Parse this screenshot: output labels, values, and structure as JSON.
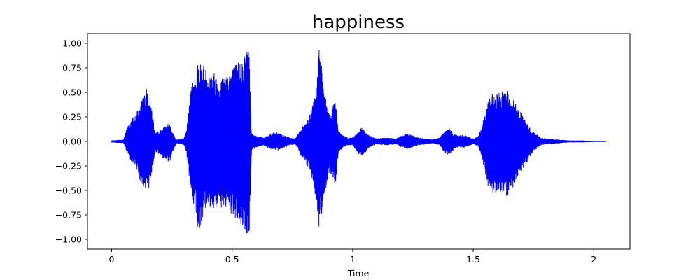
{
  "chart_data": {
    "type": "line",
    "title": "happiness",
    "xlabel": "Time",
    "ylabel": "",
    "xlim": [
      -0.1,
      2.15
    ],
    "ylim": [
      -1.1,
      1.1
    ],
    "x_ticks": [
      0,
      0.5,
      1,
      1.5,
      2
    ],
    "x_tick_labels": [
      "0",
      "0.5",
      "1",
      "1.5",
      "2"
    ],
    "y_ticks": [
      1.0,
      0.75,
      0.5,
      0.25,
      0.0,
      -0.25,
      -0.5,
      -0.75,
      -1.0
    ],
    "y_tick_labels": [
      "1.00",
      "0.75",
      "0.50",
      "0.25",
      "0.00",
      "−0.25",
      "−0.50",
      "−0.75",
      "−1.00"
    ],
    "grid": false,
    "series_color": "#0000ff",
    "duration": 2.05,
    "envelope": {
      "t": [
        0.0,
        0.05,
        0.06,
        0.08,
        0.1,
        0.12,
        0.14,
        0.15,
        0.17,
        0.18,
        0.2,
        0.22,
        0.24,
        0.25,
        0.27,
        0.29,
        0.3,
        0.31,
        0.33,
        0.35,
        0.36,
        0.38,
        0.4,
        0.42,
        0.45,
        0.48,
        0.52,
        0.55,
        0.57,
        0.58,
        0.6,
        0.63,
        0.66,
        0.68,
        0.7,
        0.72,
        0.74,
        0.76,
        0.77,
        0.78,
        0.8,
        0.82,
        0.84,
        0.85,
        0.86,
        0.87,
        0.88,
        0.9,
        0.92,
        0.93,
        0.94,
        0.96,
        0.98,
        1.0,
        1.02,
        1.04,
        1.06,
        1.08,
        1.1,
        1.14,
        1.18,
        1.2,
        1.23,
        1.26,
        1.3,
        1.33,
        1.36,
        1.38,
        1.4,
        1.42,
        1.44,
        1.46,
        1.48,
        1.5,
        1.52,
        1.54,
        1.56,
        1.58,
        1.6,
        1.62,
        1.64,
        1.66,
        1.68,
        1.7,
        1.72,
        1.74,
        1.76,
        1.78,
        1.8,
        1.85,
        1.9,
        1.95,
        2.0,
        2.05
      ],
      "upper": [
        0.01,
        0.02,
        0.12,
        0.22,
        0.28,
        0.4,
        0.52,
        0.55,
        0.3,
        0.08,
        0.12,
        0.15,
        0.2,
        0.1,
        0.02,
        0.03,
        0.04,
        0.1,
        0.55,
        0.75,
        0.82,
        0.8,
        0.7,
        0.72,
        0.65,
        0.72,
        0.8,
        0.9,
        1.0,
        0.1,
        0.06,
        0.04,
        0.08,
        0.1,
        0.08,
        0.06,
        0.04,
        0.03,
        0.06,
        0.12,
        0.18,
        0.28,
        0.45,
        0.6,
        0.95,
        0.8,
        0.55,
        0.3,
        0.38,
        0.45,
        0.12,
        0.06,
        0.04,
        0.04,
        0.1,
        0.15,
        0.08,
        0.05,
        0.03,
        0.04,
        0.03,
        0.06,
        0.08,
        0.05,
        0.03,
        0.02,
        0.04,
        0.1,
        0.14,
        0.08,
        0.06,
        0.07,
        0.05,
        0.03,
        0.05,
        0.2,
        0.4,
        0.5,
        0.48,
        0.52,
        0.55,
        0.45,
        0.38,
        0.3,
        0.2,
        0.12,
        0.08,
        0.04,
        0.03,
        0.02,
        0.01,
        0.01,
        0.005,
        0.005
      ],
      "lower": [
        -0.01,
        -0.02,
        -0.1,
        -0.2,
        -0.26,
        -0.42,
        -0.55,
        -0.52,
        -0.3,
        -0.1,
        -0.15,
        -0.18,
        -0.22,
        -0.12,
        -0.02,
        -0.03,
        -0.05,
        -0.12,
        -0.55,
        -0.78,
        -0.95,
        -0.75,
        -0.68,
        -0.7,
        -0.68,
        -0.72,
        -0.82,
        -0.92,
        -1.0,
        -0.1,
        -0.06,
        -0.04,
        -0.08,
        -0.1,
        -0.08,
        -0.06,
        -0.04,
        -0.03,
        -0.06,
        -0.14,
        -0.2,
        -0.3,
        -0.48,
        -0.65,
        -0.97,
        -0.75,
        -0.6,
        -0.32,
        -0.4,
        -0.45,
        -0.12,
        -0.06,
        -0.04,
        -0.04,
        -0.12,
        -0.16,
        -0.08,
        -0.05,
        -0.03,
        -0.04,
        -0.03,
        -0.06,
        -0.08,
        -0.05,
        -0.03,
        -0.02,
        -0.04,
        -0.12,
        -0.15,
        -0.08,
        -0.06,
        -0.07,
        -0.05,
        -0.03,
        -0.05,
        -0.22,
        -0.45,
        -0.55,
        -0.5,
        -0.52,
        -0.58,
        -0.5,
        -0.4,
        -0.3,
        -0.22,
        -0.14,
        -0.08,
        -0.04,
        -0.03,
        -0.02,
        -0.01,
        -0.01,
        -0.005,
        -0.005
      ]
    }
  }
}
